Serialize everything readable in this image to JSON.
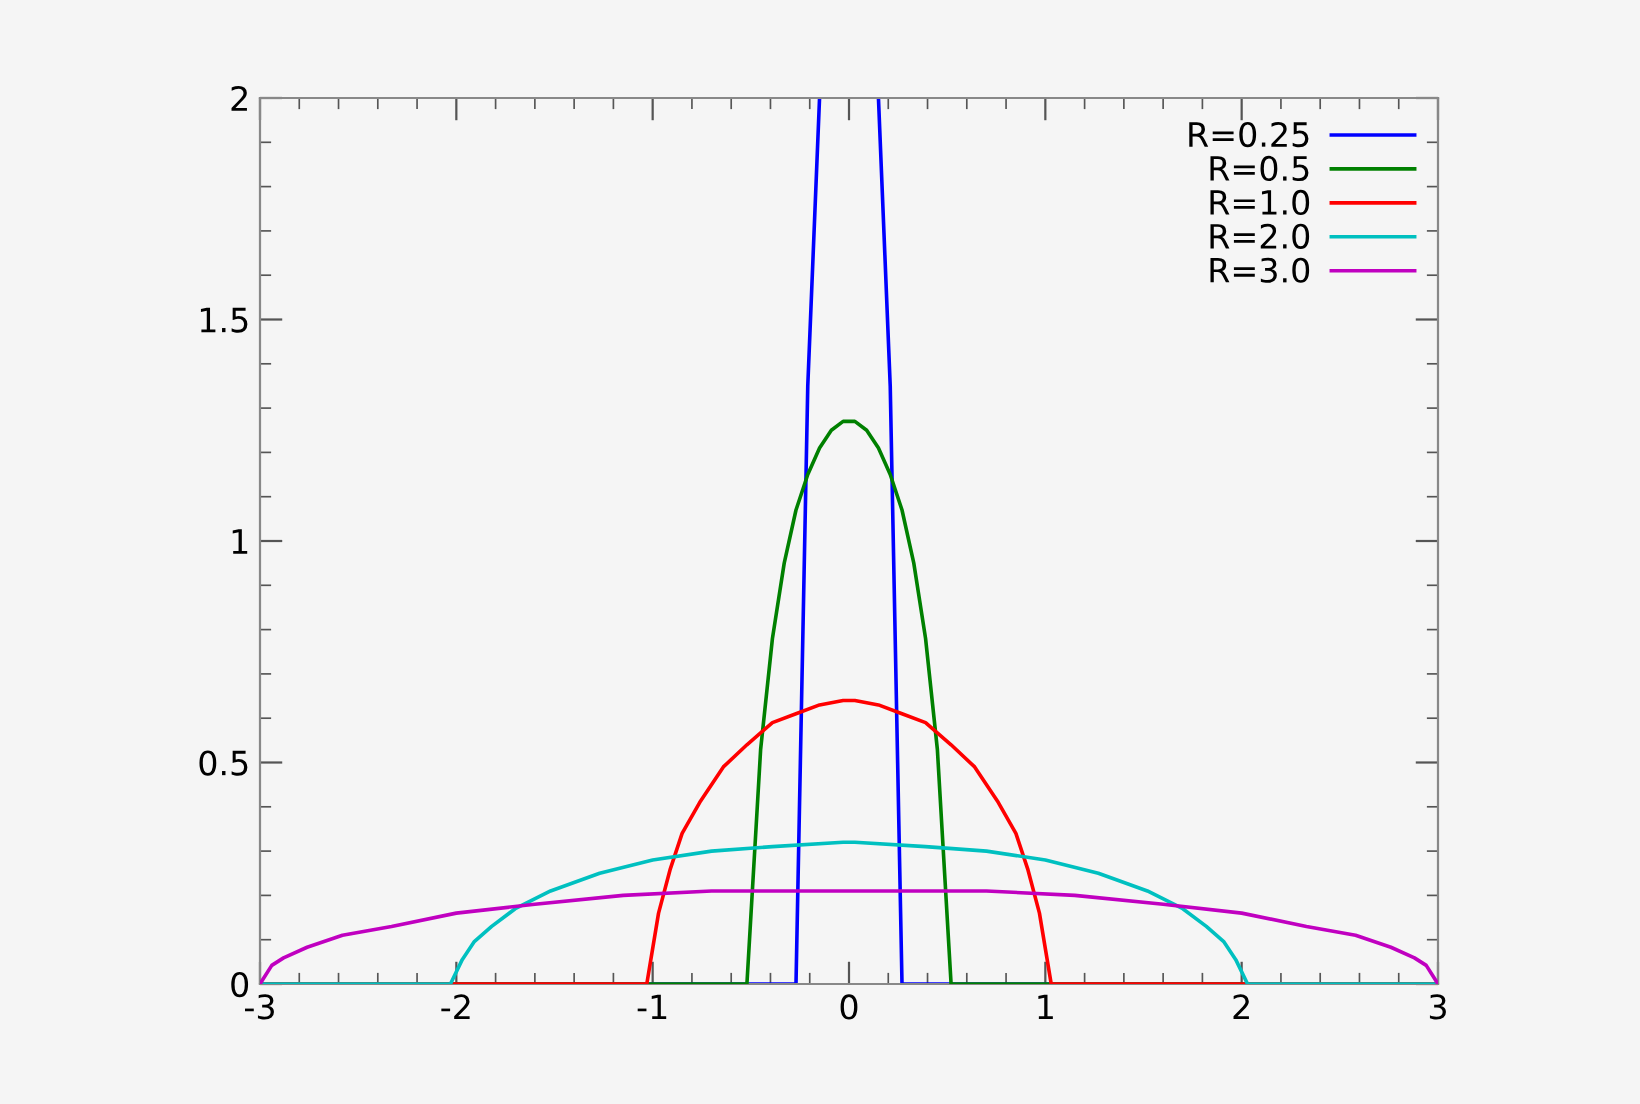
{
  "chart_data": {
    "type": "line",
    "xlim": [
      -3,
      3
    ],
    "ylim": [
      0,
      2
    ],
    "xticks": [
      -3,
      -2,
      -1,
      0,
      1,
      2,
      3
    ],
    "yticks": [
      0,
      0.5,
      1,
      1.5,
      2
    ],
    "grid": false,
    "legend": "top right",
    "marker": "none",
    "line_style": "solid",
    "series": [
      {
        "name": "R=0.25",
        "color": "#0000ff",
        "x": [
          -3,
          -0.27,
          -0.21,
          -0.15,
          0,
          0.15,
          0.21,
          0.27,
          3
        ],
        "values": [
          0,
          0,
          1.35,
          2.0,
          null,
          2.0,
          1.35,
          0,
          0
        ]
      },
      {
        "name": "R=0.5",
        "color": "#008000",
        "x": [
          -3,
          -0.52,
          -0.45,
          -0.39,
          -0.33,
          -0.27,
          -0.21,
          -0.15,
          -0.09,
          -0.03,
          0.03,
          0.09,
          0.15,
          0.21,
          0.27,
          0.33,
          0.39,
          0.45,
          0.52,
          3
        ],
        "values": [
          0,
          0,
          0.53,
          0.78,
          0.95,
          1.07,
          1.15,
          1.21,
          1.25,
          1.27,
          1.27,
          1.25,
          1.21,
          1.15,
          1.07,
          0.95,
          0.78,
          0.53,
          0,
          0
        ]
      },
      {
        "name": "R=1.0",
        "color": "#ff0000",
        "x": [
          -3,
          -1.03,
          -0.97,
          -0.91,
          -0.85,
          -0.76,
          -0.64,
          -0.52,
          -0.39,
          -0.27,
          -0.15,
          -0.03,
          0.03,
          0.15,
          0.27,
          0.39,
          0.52,
          0.64,
          0.76,
          0.85,
          0.91,
          0.97,
          1.03,
          3
        ],
        "values": [
          0,
          0,
          0.16,
          0.26,
          0.34,
          0.41,
          0.49,
          0.54,
          0.59,
          0.61,
          0.63,
          0.64,
          0.64,
          0.63,
          0.61,
          0.59,
          0.54,
          0.49,
          0.41,
          0.34,
          0.26,
          0.16,
          0,
          0
        ]
      },
      {
        "name": "R=2.0",
        "color": "#00c0c0",
        "x": [
          -3,
          -2.03,
          -1.97,
          -1.91,
          -1.82,
          -1.7,
          -1.52,
          -1.27,
          -1.0,
          -0.7,
          -0.39,
          -0.03,
          0.03,
          0.39,
          0.7,
          1.0,
          1.27,
          1.52,
          1.7,
          1.82,
          1.91,
          1.97,
          2.03,
          3
        ],
        "values": [
          0,
          0,
          0.055,
          0.095,
          0.13,
          0.17,
          0.21,
          0.25,
          0.28,
          0.3,
          0.31,
          0.32,
          0.32,
          0.31,
          0.3,
          0.28,
          0.25,
          0.21,
          0.17,
          0.13,
          0.095,
          0.055,
          0,
          0
        ]
      },
      {
        "name": "R=3.0",
        "color": "#c000c0",
        "x": [
          -3,
          -2.94,
          -2.88,
          -2.76,
          -2.58,
          -2.33,
          -2.0,
          -1.6,
          -1.15,
          -0.7,
          -0.27,
          -0.03,
          0.03,
          0.27,
          0.7,
          1.15,
          1.6,
          2.0,
          2.33,
          2.58,
          2.76,
          2.88,
          2.94,
          3
        ],
        "values": [
          0,
          0.042,
          0.059,
          0.083,
          0.11,
          0.13,
          0.16,
          0.18,
          0.2,
          0.21,
          0.21,
          0.21,
          0.21,
          0.21,
          0.21,
          0.2,
          0.18,
          0.16,
          0.13,
          0.11,
          0.083,
          0.059,
          0.042,
          0
        ]
      }
    ]
  }
}
